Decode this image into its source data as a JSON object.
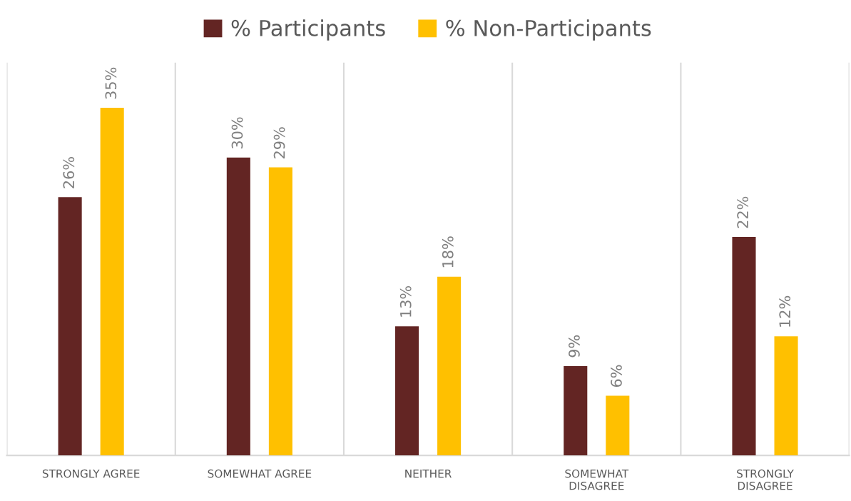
{
  "chart_data": {
    "type": "bar",
    "categories": [
      "STRONGLY AGREE",
      "SOMEWHAT AGREE",
      "NEITHER",
      "SOMEWHAT\nDISAGREE",
      "STRONGLY\nDISAGREE"
    ],
    "series": [
      {
        "name": "% Participants",
        "color": "#632523",
        "values": [
          26,
          30,
          13,
          9,
          22
        ],
        "value_labels": [
          "26%",
          "30%",
          "13%",
          "9%",
          "22%"
        ]
      },
      {
        "name": "% Non-Participants",
        "color": "#ffc000",
        "values": [
          35,
          29,
          18,
          6,
          12
        ],
        "value_labels": [
          "35%",
          "29%",
          "18%",
          "6%",
          "12%"
        ]
      }
    ],
    "grid": "x",
    "legend": "top"
  }
}
